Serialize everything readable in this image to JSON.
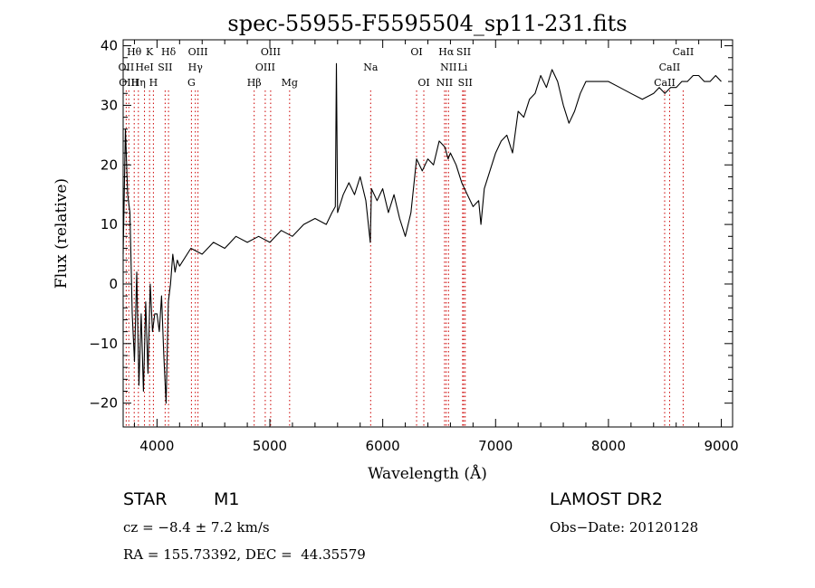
{
  "chart_data": {
    "type": "line",
    "title": "spec-55955-F5595504_sp11-231.fits",
    "xlabel": "Wavelength (Å)",
    "ylabel": "Flux (relative)",
    "xlim": [
      3700,
      9100
    ],
    "ylim": [
      -24,
      41
    ],
    "xticks": [
      4000,
      5000,
      6000,
      7000,
      8000,
      9000
    ],
    "yticks": [
      -20,
      -10,
      0,
      10,
      20,
      30,
      40
    ],
    "grid": false,
    "line_color": "#000000",
    "marker_color": "#cc0000",
    "series": [
      {
        "x": [
          3700,
          3720,
          3740,
          3760,
          3780,
          3800,
          3820,
          3840,
          3860,
          3880,
          3900,
          3920,
          3940,
          3960,
          3980,
          4000,
          4020,
          4040,
          4060,
          4080,
          4100,
          4120,
          4140,
          4160,
          4180,
          4200,
          4300,
          4400,
          4500,
          4600,
          4700,
          4800,
          4900,
          5000,
          5100,
          5200,
          5300,
          5400,
          5500,
          5550,
          5580,
          5590,
          5600,
          5650,
          5700,
          5750,
          5800,
          5850,
          5890,
          5900,
          5950,
          6000,
          6050,
          6100,
          6150,
          6200,
          6250,
          6300,
          6350,
          6400,
          6450,
          6500,
          6550,
          6580,
          6600,
          6650,
          6700,
          6750,
          6800,
          6850,
          6870,
          6900,
          6950,
          7000,
          7050,
          7100,
          7150,
          7200,
          7250,
          7300,
          7350,
          7400,
          7450,
          7500,
          7550,
          7600,
          7650,
          7700,
          7750,
          7800,
          7900,
          8000,
          8100,
          8200,
          8300,
          8400,
          8450,
          8500,
          8550,
          8600,
          8650,
          8700,
          8750,
          8800,
          8850,
          8900,
          8950,
          9000
        ],
        "y": [
          5,
          26,
          15,
          12,
          -5,
          -13,
          2,
          -17,
          -5,
          -18,
          -3,
          -15,
          0,
          -8,
          -5,
          -5,
          -8,
          -2,
          -12,
          -20,
          -3,
          0,
          5,
          2,
          4,
          3,
          6,
          5,
          7,
          6,
          8,
          7,
          8,
          7,
          9,
          8,
          10,
          11,
          10,
          12,
          13,
          37,
          12,
          15,
          17,
          15,
          18,
          14,
          7,
          16,
          14,
          16,
          12,
          15,
          11,
          8,
          12,
          21,
          19,
          21,
          20,
          24,
          23,
          21,
          22,
          20,
          17,
          15,
          13,
          14,
          10,
          16,
          19,
          22,
          24,
          25,
          22,
          29,
          28,
          31,
          32,
          35,
          33,
          36,
          34,
          30,
          27,
          29,
          32,
          34,
          34,
          34,
          33,
          32,
          31,
          32,
          33,
          32,
          33,
          33,
          34,
          34,
          35,
          35,
          34,
          34,
          35,
          34
        ]
      }
    ],
    "line_markers": [
      {
        "label": "Hθ",
        "x": 3798,
        "row": 0
      },
      {
        "label": "OII",
        "x": 3727,
        "row": 1
      },
      {
        "label": "OIII",
        "x": 3750,
        "row": 2
      },
      {
        "label": "K",
        "x": 3934,
        "row": 0
      },
      {
        "label": "HeI",
        "x": 3889,
        "row": 1
      },
      {
        "label": "SII",
        "x": 4072,
        "row": 1
      },
      {
        "label": "Hη",
        "x": 3835,
        "row": 2
      },
      {
        "label": "H",
        "x": 3968,
        "row": 2
      },
      {
        "label": "Hδ",
        "x": 4102,
        "row": 0
      },
      {
        "label": "OIII",
        "x": 4363,
        "row": 0
      },
      {
        "label": "Hγ",
        "x": 4340,
        "row": 1
      },
      {
        "label": "G",
        "x": 4305,
        "row": 2
      },
      {
        "label": "OIII",
        "x": 5007,
        "row": 0
      },
      {
        "label": "OIII",
        "x": 4959,
        "row": 1
      },
      {
        "label": "Hβ",
        "x": 4861,
        "row": 2
      },
      {
        "label": "Mg",
        "x": 5175,
        "row": 2
      },
      {
        "label": "Na",
        "x": 5893,
        "row": 1
      },
      {
        "label": "OI",
        "x": 6300,
        "row": 0
      },
      {
        "label": "OI",
        "x": 6364,
        "row": 2
      },
      {
        "label": "Hα",
        "x": 6563,
        "row": 0
      },
      {
        "label": "SII",
        "x": 6717,
        "row": 0
      },
      {
        "label": "NII",
        "x": 6583,
        "row": 1
      },
      {
        "label": "Li",
        "x": 6708,
        "row": 1
      },
      {
        "label": "NII",
        "x": 6548,
        "row": 2
      },
      {
        "label": "SII",
        "x": 6731,
        "row": 2
      },
      {
        "label": "CaII",
        "x": 8662,
        "row": 0
      },
      {
        "label": "CaII",
        "x": 8542,
        "row": 1
      },
      {
        "label": "CaII",
        "x": 8498,
        "row": 2
      }
    ]
  },
  "info": {
    "object_class": "STAR",
    "subclass": "M1",
    "cz": "cz = −8.4 ± 7.2 km/s",
    "coords": "RA = 155.73392, DEC =  44.35579",
    "survey": "LAMOST DR2",
    "obs_date": "Obs−Date: 20120128"
  }
}
